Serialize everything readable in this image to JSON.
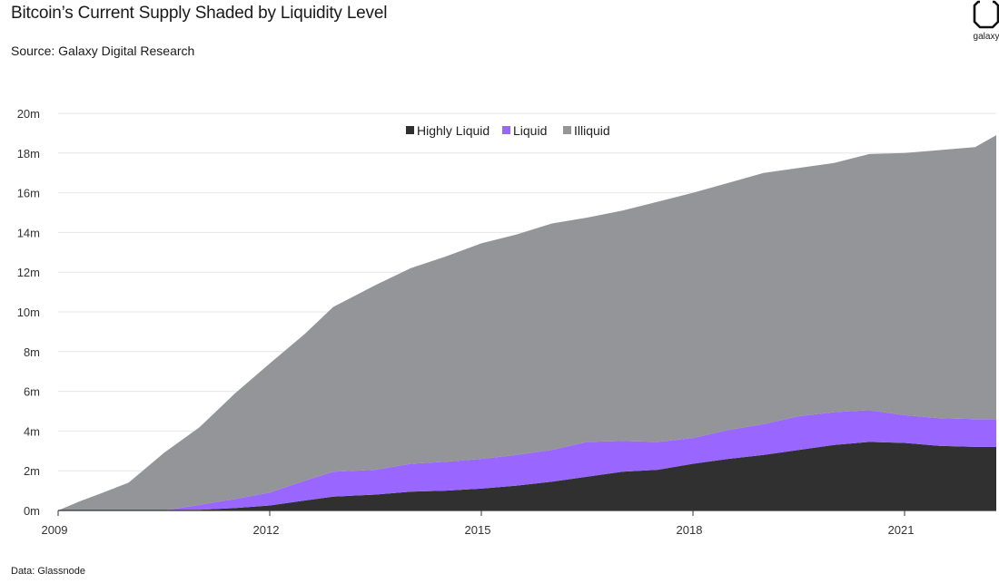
{
  "header": {
    "title": "Bitcoin’s Current Supply Shaded by Liquidity Level",
    "subtitle": "Source: Galaxy Digital Research",
    "footnote": "Data: Glassnode",
    "logo_text": "galaxy"
  },
  "colors": {
    "highly_liquid": "#303030",
    "liquid": "#9966ff",
    "illiquid": "#939598",
    "grid": "#e6e6e6",
    "axis": "#333333"
  },
  "chart_data": {
    "type": "area",
    "stacked": true,
    "title": "Bitcoin’s Current Supply Shaded by Liquidity Level",
    "xlabel": "",
    "ylabel": "",
    "xlim": [
      2009.0,
      2022.3
    ],
    "ylim": [
      0,
      20
    ],
    "grid": true,
    "legend": "top-center",
    "x_ticks": [
      {
        "value": 2009,
        "label": "2009"
      },
      {
        "value": 2012,
        "label": "2012"
      },
      {
        "value": 2015,
        "label": "2015"
      },
      {
        "value": 2018,
        "label": "2018"
      },
      {
        "value": 2021,
        "label": "2021"
      }
    ],
    "y_ticks": [
      {
        "value": 0,
        "label": "0m"
      },
      {
        "value": 2,
        "label": "2m"
      },
      {
        "value": 4,
        "label": "4m"
      },
      {
        "value": 6,
        "label": "6m"
      },
      {
        "value": 8,
        "label": "8m"
      },
      {
        "value": 10,
        "label": "10m"
      },
      {
        "value": 12,
        "label": "12m"
      },
      {
        "value": 14,
        "label": "14m"
      },
      {
        "value": 16,
        "label": "16m"
      },
      {
        "value": 18,
        "label": "18m"
      },
      {
        "value": 20,
        "label": "20m"
      }
    ],
    "x": [
      2009.0,
      2009.3,
      2009.6,
      2010.0,
      2010.5,
      2011.0,
      2011.5,
      2012.0,
      2012.5,
      2012.9,
      2013.5,
      2014.0,
      2014.5,
      2015.0,
      2015.5,
      2016.0,
      2016.5,
      2017.0,
      2017.5,
      2018.0,
      2018.5,
      2019.0,
      2019.5,
      2020.0,
      2020.5,
      2021.0,
      2021.5,
      2022.0,
      2022.3
    ],
    "series": [
      {
        "name": "Highly Liquid",
        "key": "highly_liquid",
        "values": [
          0,
          0,
          0,
          0,
          0,
          0.03,
          0.12,
          0.25,
          0.5,
          0.7,
          0.8,
          0.95,
          1.0,
          1.1,
          1.25,
          1.45,
          1.7,
          1.95,
          2.05,
          2.35,
          2.6,
          2.8,
          3.05,
          3.3,
          3.45,
          3.4,
          3.25,
          3.2,
          3.2
        ]
      },
      {
        "name": "Liquid",
        "key": "liquid",
        "values": [
          0,
          0,
          0,
          0,
          0,
          0.25,
          0.45,
          0.65,
          1.0,
          1.25,
          1.25,
          1.4,
          1.45,
          1.5,
          1.55,
          1.6,
          1.75,
          1.55,
          1.4,
          1.3,
          1.45,
          1.55,
          1.7,
          1.65,
          1.6,
          1.4,
          1.4,
          1.4,
          1.4
        ]
      },
      {
        "name": "Illiquid",
        "key": "illiquid",
        "values": [
          0,
          0.45,
          0.85,
          1.4,
          2.9,
          3.9,
          5.3,
          6.5,
          7.4,
          8.3,
          9.3,
          9.85,
          10.35,
          10.85,
          11.1,
          11.4,
          11.3,
          11.6,
          12.1,
          12.35,
          12.45,
          12.65,
          12.5,
          12.55,
          12.9,
          13.2,
          13.5,
          13.7,
          14.3
        ]
      }
    ]
  }
}
